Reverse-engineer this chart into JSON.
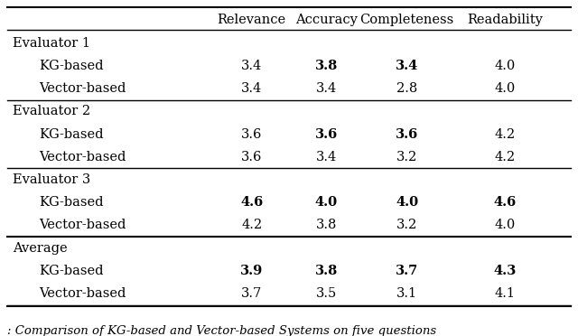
{
  "columns": [
    "",
    "Relevance",
    "Accuracy",
    "Completeness",
    "Readability"
  ],
  "rows": [
    {
      "group": "Evaluator 1",
      "system": null,
      "values": [
        null,
        null,
        null,
        null
      ]
    },
    {
      "group": null,
      "system": "KG-based",
      "values": [
        "3.4",
        "3.8",
        "3.4",
        "4.0"
      ]
    },
    {
      "group": null,
      "system": "Vector-based",
      "values": [
        "3.4",
        "3.4",
        "2.8",
        "4.0"
      ]
    },
    {
      "group": "Evaluator 2",
      "system": null,
      "values": [
        null,
        null,
        null,
        null
      ]
    },
    {
      "group": null,
      "system": "KG-based",
      "values": [
        "3.6",
        "3.6",
        "3.6",
        "4.2"
      ]
    },
    {
      "group": null,
      "system": "Vector-based",
      "values": [
        "3.6",
        "3.4",
        "3.2",
        "4.2"
      ]
    },
    {
      "group": "Evaluator 3",
      "system": null,
      "values": [
        null,
        null,
        null,
        null
      ]
    },
    {
      "group": null,
      "system": "KG-based",
      "values": [
        "4.6",
        "4.0",
        "4.0",
        "4.6"
      ]
    },
    {
      "group": null,
      "system": "Vector-based",
      "values": [
        "4.2",
        "3.8",
        "3.2",
        "4.0"
      ]
    },
    {
      "group": "Average",
      "system": null,
      "values": [
        null,
        null,
        null,
        null
      ]
    },
    {
      "group": null,
      "system": "KG-based",
      "values": [
        "3.9",
        "3.8",
        "3.7",
        "4.3"
      ]
    },
    {
      "group": null,
      "system": "Vector-based",
      "values": [
        "3.7",
        "3.5",
        "3.1",
        "4.1"
      ]
    }
  ],
  "bold_cells": {
    "1": [
      1,
      2
    ],
    "4": [
      1,
      2
    ],
    "7": [
      0,
      1,
      2,
      3
    ],
    "10": [
      0,
      1,
      2,
      3
    ]
  },
  "caption": ": Comparison of KG-based and Vector-based Systems on five questions",
  "bg_color": "#ffffff",
  "text_color": "#000000",
  "fontsize": 10.5,
  "caption_fontsize": 9.5
}
